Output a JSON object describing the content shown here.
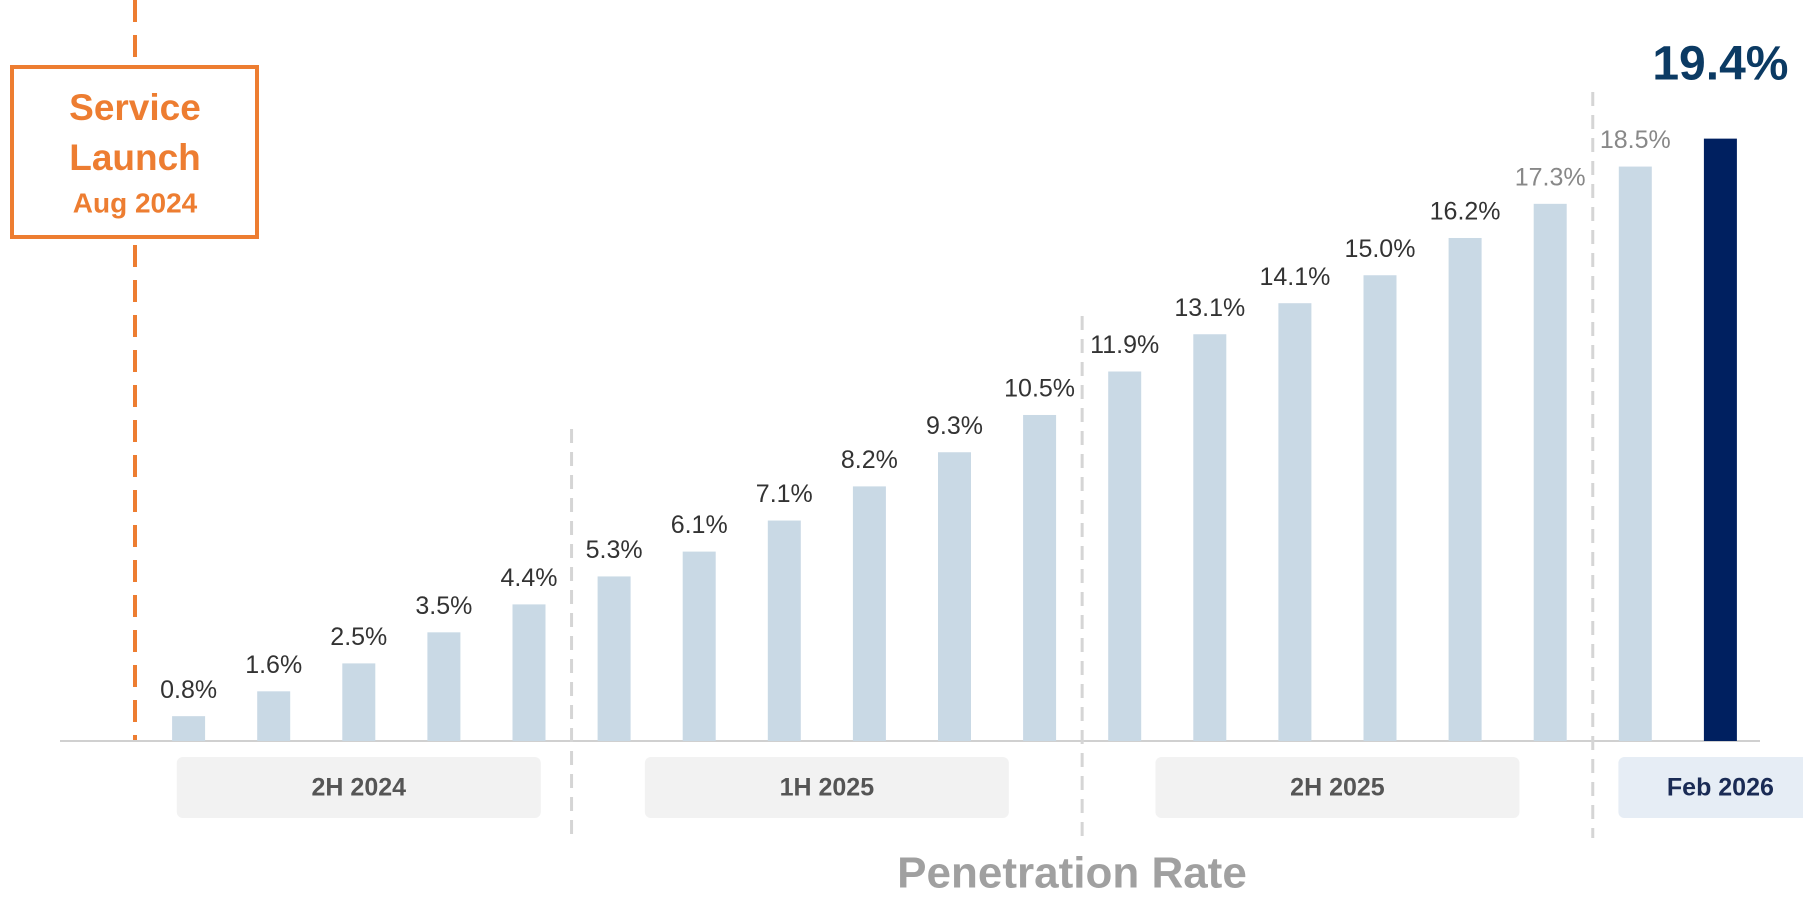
{
  "chart_data": {
    "type": "bar",
    "x_label": "Penetration Rate",
    "annotation": {
      "lines": [
        "Service",
        "Launch"
      ],
      "date": "Aug 2024",
      "color": "#ed7d31"
    },
    "categories": [
      null,
      null,
      null,
      null,
      null,
      null,
      null,
      null,
      null,
      null,
      null,
      null,
      null,
      null,
      null,
      null,
      null,
      null,
      null
    ],
    "values": [
      0.8,
      1.6,
      2.5,
      3.5,
      4.4,
      5.3,
      6.1,
      7.1,
      8.2,
      9.3,
      10.5,
      11.9,
      13.1,
      14.1,
      15.0,
      16.2,
      17.3,
      18.5,
      19.4
    ],
    "value_labels": [
      "0.8%",
      "1.6%",
      "2.5%",
      "3.5%",
      "4.4%",
      "5.3%",
      "6.1%",
      "7.1%",
      "8.2%",
      "9.3%",
      "10.5%",
      "11.9%",
      "13.1%",
      "14.1%",
      "15.0%",
      "16.2%",
      "17.3%",
      "18.5%",
      "19.4%"
    ],
    "colors": [
      "#c9d9e5",
      "#c9d9e5",
      "#c9d9e5",
      "#c9d9e5",
      "#c9d9e5",
      "#c9d9e5",
      "#c9d9e5",
      "#c9d9e5",
      "#c9d9e5",
      "#c9d9e5",
      "#c9d9e5",
      "#c9d9e5",
      "#c9d9e5",
      "#c9d9e5",
      "#c9d9e5",
      "#c9d9e5",
      "#c9d9e5",
      "#c9d9e5",
      "#002060"
    ],
    "label_colors": [
      "#333333",
      "#333333",
      "#333333",
      "#333333",
      "#333333",
      "#333333",
      "#333333",
      "#333333",
      "#333333",
      "#333333",
      "#333333",
      "#333333",
      "#333333",
      "#333333",
      "#333333",
      "#333333",
      "#888888",
      "#888888",
      "#0b3a63"
    ],
    "groups": [
      {
        "label": "2H 2024",
        "start": 0,
        "end": 4
      },
      {
        "label": "1H 2025",
        "start": 5,
        "end": 10
      },
      {
        "label": "2H 2025",
        "start": 11,
        "end": 16
      },
      {
        "label": "Feb 2026",
        "start": 18,
        "end": 18
      }
    ],
    "ylim": [
      0,
      20
    ]
  }
}
